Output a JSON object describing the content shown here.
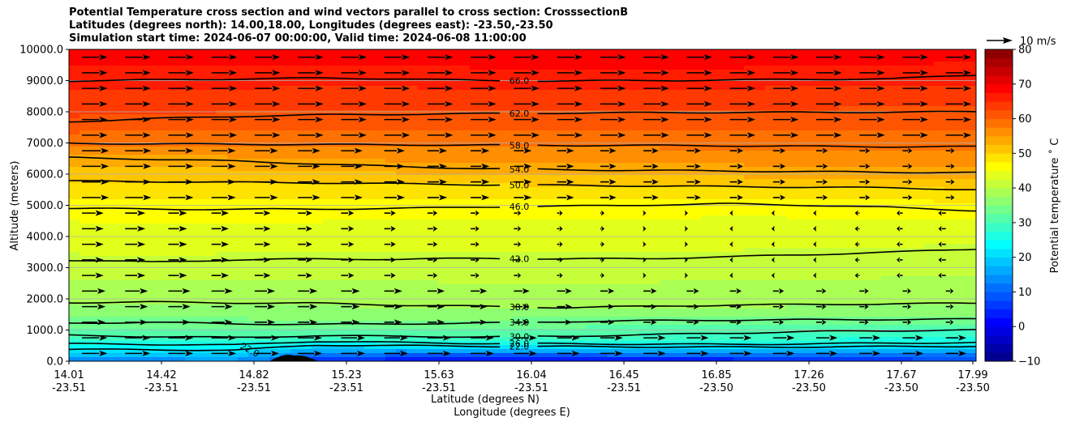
{
  "chart_data": {
    "type": "heatmap",
    "title_lines": [
      "Potential Temperature cross section and wind vectors parallel to cross section: CrosssectionB",
      "Latitudes (degrees north): 14.00,18.00, Longitudes (degrees east): -23.50,-23.50",
      "Simulation start time: 2024-06-07 00:00:00, Valid time: 2024-06-08 11:00:00"
    ],
    "xlabel": "Latitude (degrees N)",
    "xlabel2": "Longitude (degrees E)",
    "ylabel": "Altitude (meters)",
    "colorbar_label": "Potential temperature $^\\circ$C",
    "colorbar_label_display": "Potential temperature ˚ C",
    "vector_key_label": "10 m/s",
    "x_ticks": [
      {
        "lat": "14.01",
        "lon": "-23.51"
      },
      {
        "lat": "14.42",
        "lon": "-23.51"
      },
      {
        "lat": "14.82",
        "lon": "-23.51"
      },
      {
        "lat": "15.23",
        "lon": "-23.51"
      },
      {
        "lat": "15.63",
        "lon": "-23.51"
      },
      {
        "lat": "16.04",
        "lon": "-23.51"
      },
      {
        "lat": "16.45",
        "lon": "-23.51"
      },
      {
        "lat": "16.85",
        "lon": "-23.50"
      },
      {
        "lat": "17.26",
        "lon": "-23.50"
      },
      {
        "lat": "17.67",
        "lon": "-23.50"
      },
      {
        "lat": "17.99",
        "lon": "-23.50"
      }
    ],
    "y_ticks": [
      "0.0",
      "1000.0",
      "2000.0",
      "3000.0",
      "4000.0",
      "5000.0",
      "6000.0",
      "7000.0",
      "8000.0",
      "9000.0",
      "10000.0"
    ],
    "ylim": [
      0,
      10000
    ],
    "colorbar_ticks": [
      "−10",
      "0",
      "10",
      "20",
      "30",
      "40",
      "50",
      "60",
      "70",
      "80"
    ],
    "colorbar_range": [
      -10,
      80
    ],
    "colormap": "jet",
    "grid": "horizontal",
    "contours": [
      {
        "level": 22,
        "label": "22.0",
        "heights": [
          380,
          370,
          350,
          520,
          500,
          480,
          470,
          460,
          450,
          460,
          470,
          480
        ]
      },
      {
        "level": 26,
        "label": "26.0",
        "heights": [
          560,
          540,
          520,
          640,
          600,
          570,
          560,
          550,
          540,
          560,
          580,
          600
        ]
      },
      {
        "level": 30,
        "label": "30.0",
        "heights": [
          830,
          790,
          760,
          820,
          800,
          780,
          800,
          850,
          900,
          950,
          980,
          1000
        ]
      },
      {
        "level": 34,
        "label": "34.0",
        "heights": [
          1220,
          1250,
          1200,
          1180,
          1200,
          1220,
          1270,
          1300,
          1320,
          1330,
          1340,
          1350
        ]
      },
      {
        "level": 38,
        "label": "38.0",
        "heights": [
          1880,
          1900,
          1870,
          1860,
          1800,
          1760,
          1720,
          1760,
          1800,
          1820,
          1840,
          1860
        ]
      },
      {
        "level": 42,
        "label": "42.0",
        "heights": [
          3240,
          3180,
          3250,
          3280,
          3270,
          3300,
          3280,
          3290,
          3350,
          3420,
          3500,
          3600
        ]
      },
      {
        "level": 46,
        "label": "46.0",
        "heights": [
          4900,
          4880,
          4870,
          4880,
          4900,
          4950,
          4970,
          5010,
          5050,
          5000,
          4930,
          4830
        ]
      },
      {
        "level": 50,
        "label": "50.0",
        "heights": [
          5780,
          5760,
          5740,
          5720,
          5690,
          5660,
          5640,
          5620,
          5600,
          5580,
          5560,
          5500
        ]
      },
      {
        "level": 54,
        "label": "54.0",
        "heights": [
          6530,
          6480,
          6420,
          6330,
          6240,
          6180,
          6140,
          6120,
          6100,
          6080,
          6060,
          6050
        ]
      },
      {
        "level": 58,
        "label": "58.0",
        "heights": [
          6990,
          6970,
          6960,
          6950,
          6940,
          6930,
          6920,
          6920,
          6910,
          6890,
          6880,
          6880
        ]
      },
      {
        "level": 62,
        "label": "62.0",
        "heights": [
          7680,
          7780,
          7850,
          7900,
          7920,
          7940,
          7960,
          7970,
          7980,
          7980,
          7990,
          8000
        ]
      },
      {
        "level": 66,
        "label": "66.0",
        "heights": [
          8990,
          9020,
          9050,
          9080,
          9060,
          9000,
          8990,
          9000,
          9020,
          9040,
          9060,
          9180
        ]
      }
    ],
    "terrain_peak_altitude": 180
  }
}
